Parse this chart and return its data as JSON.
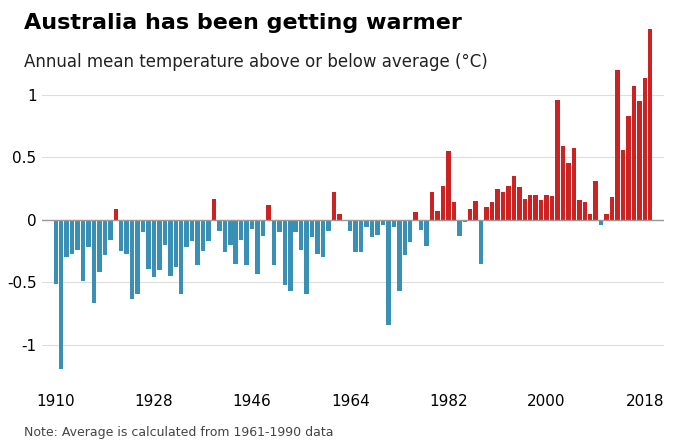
{
  "title": "Australia has been getting warmer",
  "subtitle": "Annual mean temperature above or below average (°C)",
  "note": "Note: Average is calculated from 1961-1990 data",
  "background_color": "#ffffff",
  "positive_color": "#cc2222",
  "negative_color": "#3a8fb5",
  "zero_line_color": "#999999",
  "grid_color": "#dddddd",
  "years": [
    1910,
    1911,
    1912,
    1913,
    1914,
    1915,
    1916,
    1917,
    1918,
    1919,
    1920,
    1921,
    1922,
    1923,
    1924,
    1925,
    1926,
    1927,
    1928,
    1929,
    1930,
    1931,
    1932,
    1933,
    1934,
    1935,
    1936,
    1937,
    1938,
    1939,
    1940,
    1941,
    1942,
    1943,
    1944,
    1945,
    1946,
    1947,
    1948,
    1949,
    1950,
    1951,
    1952,
    1953,
    1954,
    1955,
    1956,
    1957,
    1958,
    1959,
    1960,
    1961,
    1962,
    1963,
    1964,
    1965,
    1966,
    1967,
    1968,
    1969,
    1970,
    1971,
    1972,
    1973,
    1974,
    1975,
    1976,
    1977,
    1978,
    1979,
    1980,
    1981,
    1982,
    1983,
    1984,
    1985,
    1986,
    1987,
    1988,
    1989,
    1990,
    1991,
    1992,
    1993,
    1994,
    1995,
    1996,
    1997,
    1998,
    1999,
    2000,
    2001,
    2002,
    2003,
    2004,
    2005,
    2006,
    2007,
    2008,
    2009,
    2010,
    2011,
    2012,
    2013,
    2014,
    2015,
    2016,
    2017,
    2018,
    2019
  ],
  "anomalies": [
    -0.51,
    -1.19,
    -0.3,
    -0.27,
    -0.24,
    -0.49,
    -0.22,
    -0.66,
    -0.42,
    -0.28,
    -0.16,
    0.09,
    -0.25,
    -0.27,
    -0.63,
    -0.59,
    -0.1,
    -0.39,
    -0.46,
    -0.4,
    -0.2,
    -0.45,
    -0.38,
    -0.59,
    -0.22,
    -0.17,
    -0.36,
    -0.25,
    -0.17,
    0.17,
    -0.09,
    -0.26,
    -0.2,
    -0.35,
    -0.16,
    -0.36,
    -0.07,
    -0.43,
    -0.13,
    0.12,
    -0.36,
    -0.1,
    -0.52,
    -0.57,
    -0.1,
    -0.24,
    -0.59,
    -0.14,
    -0.27,
    -0.3,
    -0.09,
    0.22,
    0.05,
    -0.01,
    -0.09,
    -0.26,
    -0.26,
    -0.06,
    -0.14,
    -0.12,
    -0.04,
    -0.84,
    -0.06,
    -0.57,
    -0.28,
    -0.18,
    0.06,
    -0.08,
    -0.21,
    0.22,
    0.07,
    0.27,
    0.55,
    0.14,
    -0.13,
    -0.02,
    0.09,
    0.15,
    -0.35,
    0.1,
    0.14,
    0.25,
    0.22,
    0.27,
    0.35,
    0.26,
    0.17,
    0.2,
    0.2,
    0.16,
    0.2,
    0.19,
    0.96,
    0.59,
    0.45,
    0.57,
    0.16,
    0.14,
    0.05,
    0.31,
    -0.04,
    0.05,
    0.18,
    1.2,
    0.56,
    0.83,
    1.07,
    0.95,
    1.13,
    1.52
  ],
  "ylim": [
    -1.35,
    1.7
  ],
  "yticks": [
    -1.0,
    -0.5,
    0,
    0.5,
    1.0
  ],
  "xtick_years": [
    1910,
    1928,
    1946,
    1964,
    1982,
    2000,
    2018
  ],
  "title_fontsize": 16,
  "subtitle_fontsize": 12,
  "tick_fontsize": 11,
  "note_fontsize": 9
}
